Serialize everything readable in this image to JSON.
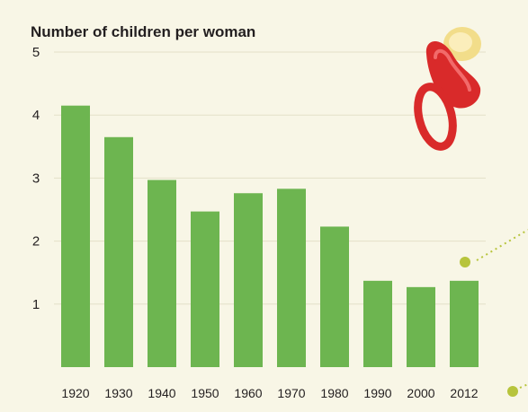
{
  "chart_data": {
    "type": "bar",
    "title": "Number of children per woman",
    "categories": [
      "1920",
      "1930",
      "1940",
      "1950",
      "1960",
      "1970",
      "1980",
      "1990",
      "2000",
      "2012"
    ],
    "values": [
      4.15,
      3.65,
      2.97,
      2.47,
      2.76,
      2.83,
      2.23,
      1.37,
      1.27,
      1.37
    ],
    "ylim": [
      0,
      5
    ],
    "yticks": [
      "1",
      "2",
      "3",
      "4",
      "5"
    ],
    "grid": true,
    "colors": {
      "background": "#f8f6e6",
      "bar": "#6db550",
      "grid": "#e3e0c8",
      "dot": "#b7c43c",
      "pacifier_red": "#d92a2a",
      "pacifier_yellow": "#f2dd8a"
    }
  },
  "icons": {
    "pacifier": "pacifier-icon"
  }
}
